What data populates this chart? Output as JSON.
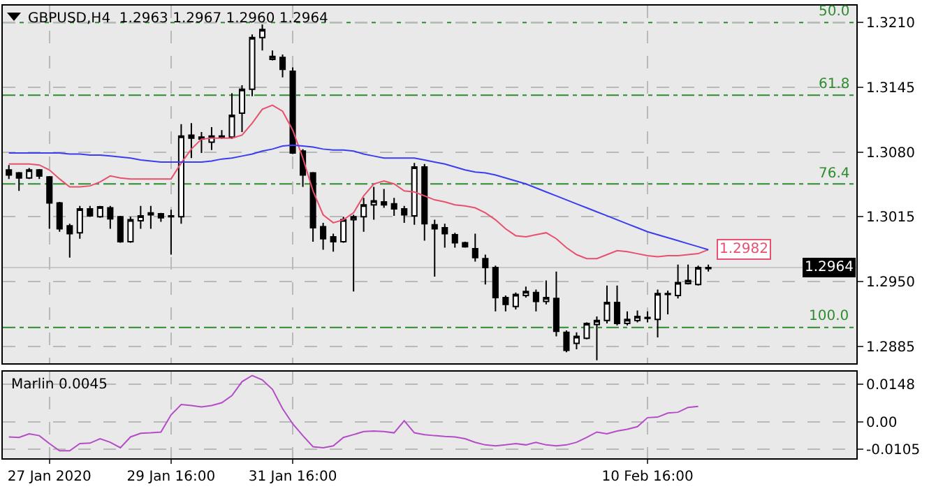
{
  "chart_data": [
    {
      "type": "candlestick",
      "title": "GBPUSD,H4  1.2963 1.2967 1.2960 1.2964",
      "categories": [
        null,
        null,
        null,
        null,
        null,
        null,
        null,
        null,
        null,
        null,
        null,
        null,
        null,
        null,
        null,
        null,
        null,
        null,
        null,
        null,
        null,
        null,
        null,
        null,
        null,
        null,
        null,
        null,
        null,
        null,
        null,
        null,
        null,
        null,
        null,
        null,
        null,
        null,
        null,
        null,
        null,
        null,
        null,
        null,
        null,
        null,
        null,
        null,
        null,
        null,
        null,
        null,
        null,
        null,
        null,
        null,
        null,
        null,
        null,
        null,
        null,
        null,
        null,
        null,
        null,
        null,
        null,
        null,
        null,
        null
      ],
      "ohlc": [
        [
          1.3062,
          1.3067,
          1.3053,
          1.3057
        ],
        [
          1.3059,
          1.306,
          1.3041,
          1.3054
        ],
        [
          1.3054,
          1.3064,
          1.3053,
          1.3062
        ],
        [
          1.3062,
          1.3063,
          1.3053,
          1.3056
        ],
        [
          1.3055,
          1.3056,
          1.3003,
          1.3029
        ],
        [
          1.3029,
          1.303,
          1.3,
          1.3003
        ],
        [
          1.3006,
          1.3008,
          1.2974,
          1.2998
        ],
        [
          1.2999,
          1.3026,
          1.2993,
          1.3023
        ],
        [
          1.3023,
          1.3026,
          1.3015,
          1.3016
        ],
        [
          1.3015,
          1.3026,
          1.3014,
          1.3025
        ],
        [
          1.3024,
          1.3026,
          1.3003,
          1.3013
        ],
        [
          1.3015,
          1.3016,
          1.2989,
          1.299
        ],
        [
          1.299,
          1.3015,
          1.2989,
          1.3012
        ],
        [
          1.3011,
          1.3026,
          1.3003,
          1.3016
        ],
        [
          1.3017,
          1.3026,
          1.3003,
          1.3019
        ],
        [
          1.3018,
          1.3019,
          1.301,
          1.3014
        ],
        [
          1.3016,
          1.3022,
          1.2977,
          1.3015
        ],
        [
          1.3015,
          1.3108,
          1.3008,
          1.3096
        ],
        [
          1.3097,
          1.3109,
          1.3074,
          1.3094
        ],
        [
          1.3093,
          1.31,
          1.3079,
          1.3095
        ],
        [
          1.309,
          1.3105,
          1.3082,
          1.3096
        ],
        [
          1.3095,
          1.3102,
          1.3093,
          1.3096
        ],
        [
          1.3095,
          1.3139,
          1.3093,
          1.3117
        ],
        [
          1.3119,
          1.3147,
          1.31,
          1.3143
        ],
        [
          1.3143,
          1.3198,
          1.3136,
          1.3195
        ],
        [
          1.3195,
          1.3208,
          1.3182,
          1.3203
        ],
        [
          1.3173,
          1.3182,
          1.3172,
          1.3176
        ],
        [
          1.3175,
          1.3178,
          1.3155,
          1.3163
        ],
        [
          1.3161,
          1.3165,
          1.3078,
          1.3079
        ],
        [
          1.3081,
          1.3083,
          1.3045,
          1.3057
        ],
        [
          1.3059,
          1.306,
          1.299,
          1.3004
        ],
        [
          1.3005,
          1.3009,
          1.2982,
          1.2993
        ],
        [
          1.2995,
          1.2998,
          1.298,
          1.299
        ],
        [
          1.299,
          1.3015,
          1.2989,
          1.3012
        ],
        [
          1.3012,
          1.3017,
          1.294,
          1.3015
        ],
        [
          1.3015,
          1.3034,
          1.3,
          1.3027
        ],
        [
          1.3027,
          1.3045,
          1.3012,
          1.3031
        ],
        [
          1.303,
          1.3043,
          1.3024,
          1.3027
        ],
        [
          1.3028,
          1.3034,
          1.3016,
          1.3023
        ],
        [
          1.3023,
          1.3026,
          1.3009,
          1.3017
        ],
        [
          1.3016,
          1.3069,
          1.3007,
          1.3065
        ],
        [
          1.3065,
          1.3068,
          1.2991,
          1.3008
        ],
        [
          1.3007,
          1.3012,
          1.2955,
          1.3003
        ],
        [
          1.3004,
          1.3008,
          1.2984,
          1.2998
        ],
        [
          1.2997,
          1.2999,
          1.2984,
          1.2989
        ],
        [
          1.2989,
          1.299,
          1.2984,
          1.2985
        ],
        [
          1.2983,
          1.2998,
          1.297,
          1.2974
        ],
        [
          1.2973,
          1.2977,
          1.2947,
          1.2964
        ],
        [
          1.2964,
          1.2966,
          1.292,
          1.2934
        ],
        [
          1.2934,
          1.2936,
          1.292,
          1.2927
        ],
        [
          1.2925,
          1.2939,
          1.2922,
          1.2937
        ],
        [
          1.2936,
          1.2945,
          1.2934,
          1.294
        ],
        [
          1.2939,
          1.2942,
          1.292,
          1.293
        ],
        [
          1.293,
          1.2951,
          1.2927,
          1.2934
        ],
        [
          1.2933,
          1.296,
          1.2895,
          1.29
        ],
        [
          1.2899,
          1.2901,
          1.2879,
          1.2881
        ],
        [
          1.2888,
          1.2899,
          1.2882,
          1.2895
        ],
        [
          1.2893,
          1.2909,
          1.2892,
          1.2908
        ],
        [
          1.2907,
          1.2915,
          1.2871,
          1.2911
        ],
        [
          1.2911,
          1.2946,
          1.2908,
          1.2929
        ],
        [
          1.2929,
          1.2946,
          1.2906,
          1.2908
        ],
        [
          1.2908,
          1.292,
          1.2906,
          1.2912
        ],
        [
          1.2911,
          1.2921,
          1.2909,
          1.2915
        ],
        [
          1.2913,
          1.292,
          1.2909,
          1.2914
        ],
        [
          1.2912,
          1.2942,
          1.2894,
          1.2938
        ],
        [
          1.2937,
          1.2941,
          1.2917,
          1.2938
        ],
        [
          1.2936,
          1.2967,
          1.2933,
          1.2949
        ],
        [
          1.2948,
          1.2967,
          1.2947,
          1.2951
        ],
        [
          1.2947,
          1.2966,
          1.2946,
          1.2964
        ],
        [
          1.2963,
          1.2967,
          1.296,
          1.2964
        ]
      ],
      "series": [
        {
          "type": "line",
          "color": "#e8506e",
          "values": [
            1.3068,
            1.3068,
            1.3068,
            1.3067,
            1.3062,
            1.3053,
            1.3045,
            1.3045,
            1.3046,
            1.305,
            1.3056,
            1.3054,
            1.3053,
            1.3053,
            1.3053,
            1.3053,
            1.3053,
            1.3069,
            1.3083,
            1.3093,
            1.3094,
            1.3094,
            1.3094,
            1.3097,
            1.3109,
            1.3123,
            1.3127,
            1.3121,
            1.3102,
            1.3074,
            1.3041,
            1.3017,
            1.3009,
            1.3012,
            1.3019,
            1.3036,
            1.3048,
            1.3051,
            1.3048,
            1.3041,
            1.304,
            1.3036,
            1.3032,
            1.303,
            1.3027,
            1.3026,
            1.3024,
            1.3019,
            1.3012,
            1.3003,
            1.2996,
            1.2995,
            1.2997,
            1.2999,
            1.2993,
            1.2984,
            1.2977,
            1.2973,
            1.2973,
            1.2977,
            1.2981,
            1.298,
            1.2978,
            1.2976,
            1.2975,
            1.2976,
            1.2976,
            1.2977,
            1.2978,
            1.2982
          ]
        },
        {
          "type": "line",
          "color": "#3c3cf0",
          "values": [
            1.3079,
            1.3079,
            1.3079,
            1.3079,
            1.3079,
            1.3079,
            1.3078,
            1.3078,
            1.3077,
            1.3077,
            1.3076,
            1.3075,
            1.3074,
            1.3072,
            1.3071,
            1.307,
            1.307,
            1.307,
            1.307,
            1.307,
            1.3071,
            1.3073,
            1.3074,
            1.3076,
            1.3078,
            1.3081,
            1.3083,
            1.3086,
            1.3087,
            1.3086,
            1.3085,
            1.3083,
            1.3082,
            1.3082,
            1.3081,
            1.3078,
            1.3076,
            1.3074,
            1.3074,
            1.3074,
            1.3074,
            1.3072,
            1.307,
            1.3068,
            1.3065,
            1.3062,
            1.306,
            1.3059,
            1.3057,
            1.3054,
            1.3051,
            1.3048,
            1.3044,
            1.304,
            1.3036,
            1.3032,
            1.3028,
            1.3024,
            1.302,
            1.3016,
            1.3012,
            1.3008,
            1.3004,
            1.3,
            1.2997,
            1.2994,
            1.2991,
            1.2988,
            1.2985,
            1.2982
          ]
        }
      ],
      "ylim": [
        1.2868,
        1.3227
      ],
      "yticks": [
        {
          "value": 1.321,
          "label": "1.3210"
        },
        1.3145,
        {
          "value": 1.308,
          "label": "1.3080"
        },
        1.3015,
        {
          "value": 1.295,
          "label": "1.2950"
        },
        1.2885
      ],
      "ref_lines": [
        {
          "axis": "y",
          "value": 1.321,
          "color": "#2e8b2e",
          "line_style": "dashed"
        },
        {
          "axis": "y",
          "value": 1.3137,
          "color": "#2e8b2e",
          "line_style": "dashed"
        },
        {
          "axis": "y",
          "value": 1.3048,
          "color": "#2e8b2e",
          "line_style": "dashed"
        },
        {
          "axis": "y",
          "value": 1.2904,
          "color": "#2e8b2e",
          "line_style": "dashed"
        },
        {
          "axis": "y",
          "value": 1.2964,
          "label": "1.2964",
          "color": "#c8c8c8",
          "line_style": "solid"
        }
      ],
      "annotations": [
        {
          "text": "50.0",
          "y": 1.321
        },
        {
          "text": "61.8",
          "y": 1.3137
        },
        {
          "text": "76.4",
          "y": 1.3048
        },
        {
          "text": "100.0",
          "y": 1.2904
        },
        {
          "text": "1.2982",
          "y": 1.2982
        }
      ],
      "grid": true,
      "legend": false,
      "tick_labels": "y"
    },
    {
      "type": "line",
      "title": "Marlin 0.0045",
      "categories": [
        null,
        null,
        null,
        null,
        "27 Jan 2020",
        null,
        null,
        null,
        null,
        null,
        null,
        null,
        null,
        null,
        null,
        null,
        "29 Jan 16:00",
        null,
        null,
        null,
        null,
        null,
        null,
        null,
        null,
        null,
        null,
        null,
        "31 Jan 16:00",
        null,
        null,
        null,
        null,
        null,
        null,
        null,
        null,
        null,
        null,
        null,
        null,
        null,
        null,
        null,
        null,
        null,
        null,
        null,
        null,
        null,
        null,
        null,
        null,
        null,
        null,
        null,
        null,
        null,
        null,
        null,
        null,
        null,
        null,
        "10 Feb 16:00",
        null,
        null,
        null,
        null,
        null,
        null
      ],
      "series": [
        {
          "color": "#b44cc8",
          "values": [
            -0.0058,
            -0.006,
            -0.0046,
            -0.0053,
            -0.0084,
            -0.0112,
            -0.0112,
            -0.0084,
            -0.0082,
            -0.0065,
            -0.0079,
            -0.01,
            -0.0058,
            -0.0044,
            -0.0042,
            -0.0039,
            0.0028,
            0.0068,
            0.0064,
            0.0059,
            0.0064,
            0.0075,
            0.0103,
            0.0157,
            0.0181,
            0.0164,
            0.0127,
            0.0052,
            -0.0007,
            -0.0053,
            -0.0096,
            -0.01,
            -0.0093,
            -0.006,
            -0.0049,
            -0.0037,
            -0.0035,
            -0.0037,
            -0.0042,
            0.0005,
            -0.0042,
            -0.0049,
            -0.0053,
            -0.0056,
            -0.0058,
            -0.0065,
            -0.0079,
            -0.0089,
            -0.0093,
            -0.0089,
            -0.0084,
            -0.0089,
            -0.0079,
            -0.0089,
            -0.0093,
            -0.0089,
            -0.0079,
            -0.006,
            -0.0039,
            -0.0046,
            -0.0035,
            -0.0028,
            -0.0018,
            0.0017,
            0.0019,
            0.0035,
            0.0038,
            0.0057,
            0.0061,
            null
          ]
        }
      ],
      "ylim": [
        -0.0141,
        0.0196
      ],
      "yticks": [
        0.0148,
        {
          "value": 0,
          "label": "0.00"
        },
        -0.0105
      ],
      "grid": true,
      "legend": false
    }
  ]
}
